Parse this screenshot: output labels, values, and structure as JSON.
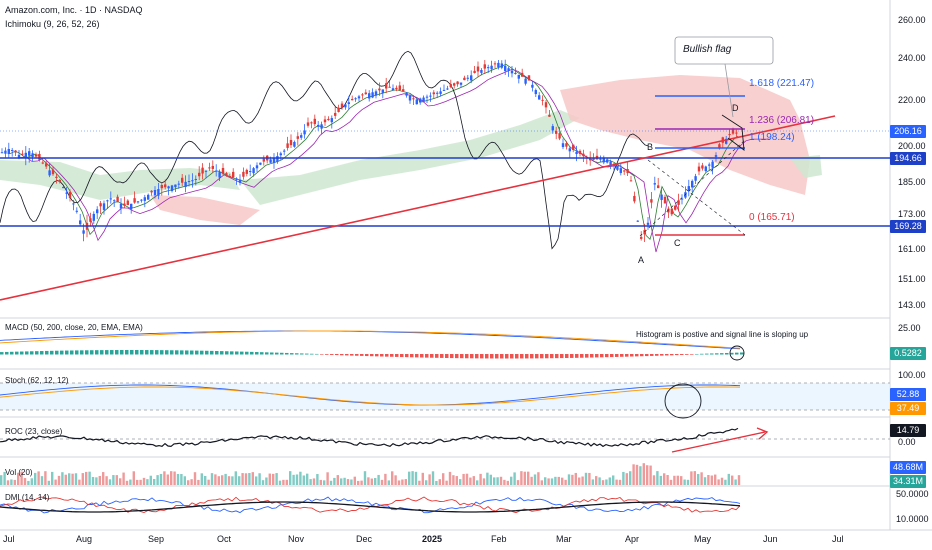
{
  "header": {
    "symbol": "Amazon.com, Inc. · 1D · NASDAQ",
    "indicator": "Ichimoku (9, 26, 52, 26)"
  },
  "colors": {
    "up": "#2962ff",
    "down": "#e53935",
    "trendline": "#e5323e",
    "level": "#1e3fc8",
    "fib_purple": "#9c27b0",
    "fib_red": "#e5323e",
    "cloud_bull": "#cfe8d0",
    "cloud_bear": "#f7c8c8",
    "kijun": "#9c27b0",
    "tenkan": "#2e7d32",
    "lagging": "#131722"
  },
  "price_axis": {
    "ticks": [
      "260.00",
      "240.00",
      "220.00",
      "200.00",
      "185.00",
      "173.00",
      "161.00",
      "151.00",
      "143.00"
    ],
    "badges": [
      {
        "label": "206.16",
        "color": "#2962ff"
      },
      {
        "label": "194.66",
        "color": "#1e3fc8"
      },
      {
        "label": "169.28",
        "color": "#1e3fc8"
      }
    ]
  },
  "time_axis": [
    "Jul",
    "Aug",
    "Sep",
    "Oct",
    "Nov",
    "Dec",
    "2025",
    "Feb",
    "Mar",
    "Apr",
    "May",
    "Jun",
    "Jul"
  ],
  "annotations": {
    "callout": "Bullish flag",
    "fib_1618": "1.618 (221.47)",
    "fib_1236": "1.236 (206.81)",
    "fib_1": "1 (198.24)",
    "fib_0": "0 (165.71)",
    "pt_a": "A",
    "pt_b": "B",
    "pt_c": "C",
    "pt_d": "D"
  },
  "panels": {
    "macd": {
      "title": "MACD (50, 200, close, 20, EMA, EMA)",
      "ticks": [
        "25.00"
      ],
      "badge": "0.5282",
      "badge2": "",
      "note": "Histogram is postive and signal line is sloping up"
    },
    "stoch": {
      "title": "Stoch (62, 12, 12)",
      "ticks": [
        "100.00"
      ],
      "badge1": "52.88",
      "badge2": "37.49"
    },
    "roc": {
      "title": "ROC (23, close)",
      "ticks": [
        "0.00"
      ],
      "badge": "14.79"
    },
    "vol": {
      "title": "Vol (20)",
      "badge1": "48.68M",
      "badge2": "34.31M"
    },
    "dmi": {
      "title": "DMI (14, 14)",
      "ticks": [
        "50.0000",
        "10.0000"
      ]
    }
  },
  "chart_data": {
    "type": "candlestick",
    "title": "Amazon.com, Inc. · 1D · NASDAQ",
    "xlabel": "",
    "ylabel": "",
    "ylim": [
      143,
      260
    ],
    "x_ticks": [
      "Jul",
      "Aug",
      "Sep",
      "Oct",
      "Nov",
      "Dec",
      "2025",
      "Feb",
      "Mar",
      "Apr",
      "May",
      "Jun",
      "Jul"
    ],
    "y_ticks": [
      260,
      240,
      220,
      200,
      185,
      173,
      161,
      151,
      143
    ],
    "close_series_approx": [
      {
        "x": "Jul",
        "y": 198
      },
      {
        "x": "Aug",
        "y": 176
      },
      {
        "x": "Aug",
        "y": 165
      },
      {
        "x": "Sep",
        "y": 175
      },
      {
        "x": "Oct",
        "y": 186
      },
      {
        "x": "Nov",
        "y": 205
      },
      {
        "x": "Dec",
        "y": 225
      },
      {
        "x": "2025",
        "y": 220
      },
      {
        "x": "Feb",
        "y": 235
      },
      {
        "x": "Mar",
        "y": 200
      },
      {
        "x": "Apr",
        "y": 172
      },
      {
        "x": "May",
        "y": 190
      },
      {
        "x": "May",
        "y": 206.16
      }
    ],
    "levels": [
      194.66,
      169.28
    ],
    "fibonacci": [
      {
        "ratio": 1.618,
        "value": 221.47
      },
      {
        "ratio": 1.236,
        "value": 206.81
      },
      {
        "ratio": 1,
        "value": 198.24
      },
      {
        "ratio": 0,
        "value": 165.71
      }
    ],
    "last_price": 206.16,
    "points": [
      "A",
      "B",
      "C",
      "D"
    ],
    "pattern": "Bullish flag",
    "indicators": {
      "macd_value": 0.5282,
      "stoch_k": 52.88,
      "stoch_d": 37.49,
      "roc": 14.79,
      "volume": [
        "48.68M",
        "34.31M"
      ]
    },
    "grid": false,
    "legend": "none"
  }
}
